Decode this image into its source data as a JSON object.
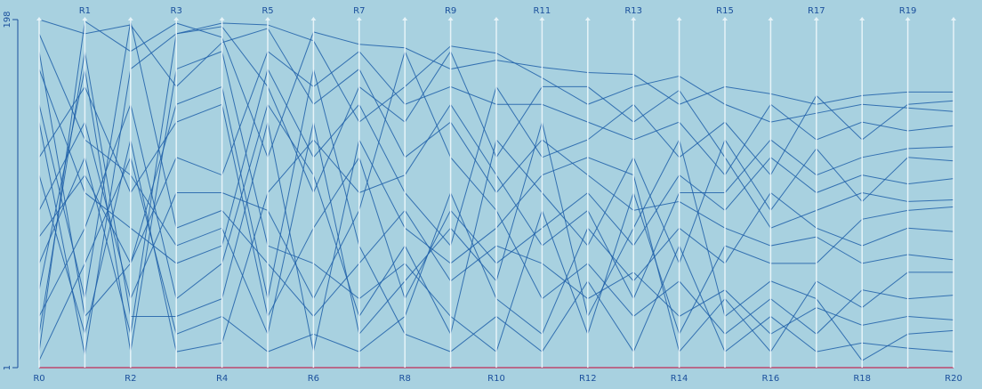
{
  "chart_data": {
    "type": "parallel",
    "axes": [
      "R0",
      "R1",
      "R2",
      "R3",
      "R4",
      "R5",
      "R6",
      "R7",
      "R8",
      "R9",
      "R10",
      "R11",
      "R12",
      "R13",
      "R14",
      "R15",
      "R16",
      "R17",
      "R18",
      "R19",
      "R20"
    ],
    "ylim": [
      1,
      198
    ],
    "yticks": [
      1,
      198
    ],
    "series": [
      {
        "color": "#1f5fa8",
        "values": [
          198,
          190,
          195,
          160,
          185,
          193,
          150,
          170,
          120,
          140,
          100,
          130,
          110,
          90,
          95,
          80,
          70,
          75,
          60,
          65,
          62
        ]
      },
      {
        "color": "#1f5fa8",
        "values": [
          10,
          197,
          180,
          196,
          188,
          120,
          191,
          184,
          182,
          170,
          175,
          171,
          168,
          167,
          150,
          160,
          156,
          150,
          155,
          157,
          157
        ]
      },
      {
        "color": "#1f5fa8",
        "values": [
          150,
          40,
          197,
          80,
          90,
          60,
          30,
          60,
          90,
          50,
          70,
          60,
          40,
          55,
          30,
          45,
          20,
          35,
          25,
          30,
          28
        ]
      },
      {
        "color": "#1f5fa8",
        "values": [
          60,
          120,
          20,
          190,
          196,
          195,
          186,
          140,
          160,
          183,
          179,
          165,
          150,
          160,
          166,
          150,
          140,
          145,
          150,
          148,
          146
        ]
      },
      {
        "color": "#1f5fa8",
        "values": [
          120,
          160,
          100,
          140,
          150,
          30,
          80,
          120,
          40,
          90,
          60,
          80,
          100,
          70,
          110,
          90,
          120,
          100,
          110,
          105,
          108
        ]
      },
      {
        "color": "#1f5fa8",
        "values": [
          30,
          80,
          150,
          40,
          60,
          150,
          110,
          30,
          70,
          20,
          130,
          100,
          70,
          120,
          60,
          130,
          90,
          125,
          95,
          120,
          118
        ]
      },
      {
        "color": "#1f5fa8",
        "values": [
          180,
          30,
          60,
          120,
          110,
          180,
          160,
          180,
          150,
          160,
          150,
          150,
          140,
          130,
          140,
          110,
          150,
          130,
          140,
          135,
          138
        ]
      },
      {
        "color": "#1f5fa8",
        "values": [
          90,
          140,
          40,
          100,
          100,
          90,
          40,
          90,
          180,
          120,
          90,
          40,
          60,
          30,
          50,
          20,
          40,
          20,
          45,
          40,
          42
        ]
      },
      {
        "color": "#1f5fa8",
        "values": [
          5,
          60,
          120,
          20,
          30,
          10,
          20,
          10,
          30,
          100,
          40,
          20,
          80,
          50,
          80,
          60,
          100,
          80,
          70,
          80,
          78
        ]
      },
      {
        "color": "#1f5fa8",
        "values": [
          170,
          100,
          80,
          60,
          70,
          170,
          120,
          150,
          100,
          70,
          160,
          120,
          130,
          150,
          120,
          140,
          110,
          155,
          130,
          150,
          152
        ]
      },
      {
        "color": "#1f5fa8",
        "values": [
          45,
          170,
          10,
          170,
          180,
          70,
          60,
          40,
          60,
          30,
          10,
          90,
          20,
          100,
          20,
          70,
          60,
          60,
          85,
          90,
          92
        ]
      },
      {
        "color": "#1f5fa8",
        "values": [
          110,
          20,
          130,
          10,
          15,
          100,
          130,
          100,
          110,
          150,
          110,
          70,
          90,
          40,
          100,
          100,
          130,
          110,
          120,
          125,
          126
        ]
      },
      {
        "color": "#1f5fa8",
        "values": [
          75,
          110,
          60,
          150,
          160,
          40,
          170,
          70,
          20,
          10,
          30,
          10,
          50,
          10,
          70,
          10,
          30,
          10,
          15,
          12,
          10
        ]
      },
      {
        "color": "#1f5fa8",
        "values": [
          140,
          8,
          170,
          190,
          194,
          160,
          100,
          160,
          140,
          180,
          120,
          160,
          160,
          140,
          158,
          120,
          80,
          90,
          100,
          95,
          96
        ]
      },
      {
        "color": "#1f5fa8",
        "values": [
          20,
          180,
          30,
          30,
          40,
          140,
          10,
          130,
          80,
          60,
          80,
          110,
          120,
          110,
          10,
          40,
          10,
          50,
          35,
          55,
          55
        ]
      },
      {
        "color": "#1f5fa8",
        "values": [
          190,
          130,
          110,
          70,
          80,
          20,
          140,
          20,
          50,
          80,
          50,
          140,
          30,
          80,
          130,
          30,
          50,
          40,
          5,
          20,
          22
        ]
      },
      {
        "color": "#c2305a",
        "values": [
          1,
          1,
          1,
          1,
          1,
          1,
          1,
          1,
          1,
          1,
          1,
          1,
          1,
          1,
          1,
          1,
          1,
          1,
          1,
          1,
          1
        ]
      }
    ]
  }
}
